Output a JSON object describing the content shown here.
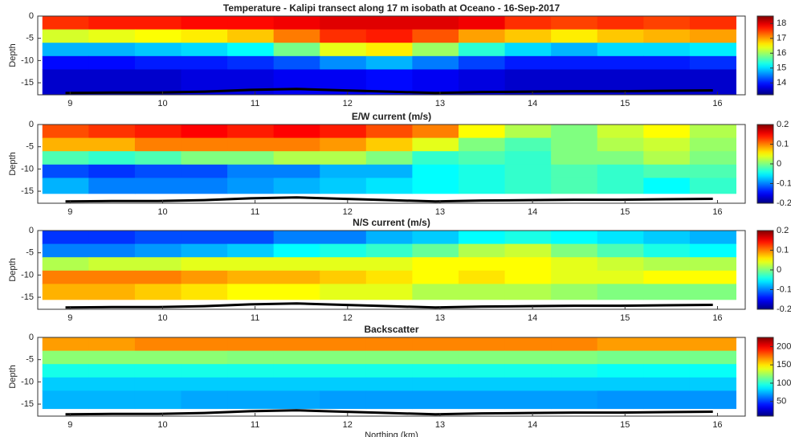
{
  "chart_data": [
    {
      "type": "heatmap",
      "title": "Temperature - Kalipi transect along 17 m isobath at Oceano - 16-Sep-2017",
      "y_label": "Depth",
      "colormap": "jet",
      "xlim": [
        8.65,
        16.3
      ],
      "xticks": [
        9,
        10,
        11,
        12,
        13,
        14,
        15,
        16
      ],
      "ylim": [
        -17.7,
        0
      ],
      "yticks": [
        0,
        -5,
        -10,
        -15
      ],
      "clim": [
        13.2,
        18.5
      ],
      "cticks": [
        14,
        15,
        16,
        17,
        18
      ],
      "x_edges": [
        8.7,
        9.2,
        9.7,
        10.2,
        10.7,
        11.2,
        11.7,
        12.2,
        12.7,
        13.2,
        13.7,
        14.2,
        14.7,
        15.2,
        15.7,
        16.2
      ],
      "y_edges": [
        0,
        -3,
        -6,
        -9,
        -12,
        -17.7
      ],
      "z": [
        [
          17.6,
          17.7,
          17.7,
          17.8,
          17.8,
          17.9,
          18,
          18,
          18,
          17.9,
          17.6,
          17.5,
          17.6,
          17.5,
          17.6
        ],
        [
          16.3,
          16.4,
          16.5,
          16.6,
          16.8,
          17.2,
          17.6,
          17.7,
          17.4,
          17,
          16.8,
          16.6,
          16.8,
          16.9,
          17
        ],
        [
          14.8,
          14.8,
          14.9,
          15,
          15.2,
          15.8,
          16.4,
          16.6,
          16,
          15.4,
          15,
          14.8,
          15,
          15,
          15.1
        ],
        [
          13.9,
          13.9,
          14,
          14,
          14.1,
          14.3,
          14.6,
          14.8,
          14.5,
          14.2,
          14,
          14,
          14,
          14,
          14.1
        ],
        [
          13.6,
          13.6,
          13.6,
          13.7,
          13.7,
          13.8,
          13.8,
          13.9,
          13.8,
          13.7,
          13.6,
          13.6,
          13.6,
          13.6,
          13.6
        ]
      ],
      "seafloor_x": [
        8.95,
        9.45,
        9.95,
        10.45,
        10.95,
        11.45,
        11.95,
        12.45,
        12.95,
        13.45,
        13.95,
        14.45,
        14.95,
        15.45,
        15.95
      ],
      "seafloor": [
        -17.3,
        -17.2,
        -17.2,
        -17,
        -16.6,
        -16.4,
        -16.7,
        -17,
        -17.3,
        -17.1,
        -17,
        -16.9,
        -16.9,
        -16.8,
        -16.7
      ]
    },
    {
      "type": "heatmap",
      "title": "E/W current (m/s)",
      "y_label": "Depth",
      "colormap": "jet",
      "xlim": [
        8.65,
        16.3
      ],
      "xticks": [
        9,
        10,
        11,
        12,
        13,
        14,
        15,
        16
      ],
      "ylim": [
        -17.7,
        0
      ],
      "yticks": [
        0,
        -5,
        -10,
        -15
      ],
      "clim": [
        -0.2,
        0.2
      ],
      "cticks": [
        0.2,
        0.1,
        0,
        -0.1,
        -0.2
      ],
      "x_edges": [
        8.7,
        9.2,
        9.7,
        10.2,
        10.7,
        11.2,
        11.7,
        12.2,
        12.7,
        13.2,
        13.7,
        14.2,
        14.7,
        15.2,
        15.7,
        16.2
      ],
      "y_edges": [
        0,
        -3,
        -6,
        -9,
        -12,
        -15.5
      ],
      "z": [
        [
          0.12,
          0.13,
          0.14,
          0.15,
          0.14,
          0.15,
          0.14,
          0.12,
          0.1,
          0.05,
          0.02,
          0,
          0.03,
          0.05,
          0.02
        ],
        [
          0.08,
          0.08,
          0.1,
          0.1,
          0.1,
          0.1,
          0.09,
          0.07,
          0.04,
          0,
          -0.02,
          0,
          0.02,
          0.03,
          0.01
        ],
        [
          -0.02,
          -0.03,
          -0.02,
          0,
          0,
          0.02,
          0.02,
          0,
          -0.03,
          -0.02,
          -0.03,
          0,
          0,
          0.02,
          0
        ],
        [
          -0.12,
          -0.13,
          -0.12,
          -0.12,
          -0.1,
          -0.1,
          -0.08,
          -0.08,
          -0.05,
          -0.04,
          -0.03,
          -0.02,
          -0.03,
          -0.02,
          -0.02
        ],
        [
          -0.08,
          -0.1,
          -0.1,
          -0.1,
          -0.09,
          -0.08,
          -0.07,
          -0.06,
          -0.05,
          -0.04,
          -0.03,
          -0.02,
          -0.03,
          -0.05,
          -0.03
        ]
      ],
      "seafloor_x": [
        8.95,
        9.45,
        9.95,
        10.45,
        10.95,
        11.45,
        11.95,
        12.45,
        12.95,
        13.45,
        13.95,
        14.45,
        14.95,
        15.45,
        15.95
      ],
      "seafloor": [
        -17.3,
        -17.2,
        -17.2,
        -17,
        -16.6,
        -16.4,
        -16.7,
        -17,
        -17.3,
        -17.1,
        -17,
        -16.9,
        -16.9,
        -16.8,
        -16.7
      ]
    },
    {
      "type": "heatmap",
      "title": "N/S current (m/s)",
      "y_label": "Depth",
      "colormap": "jet",
      "xlim": [
        8.65,
        16.3
      ],
      "xticks": [
        9,
        10,
        11,
        12,
        13,
        14,
        15,
        16
      ],
      "ylim": [
        -17.7,
        0
      ],
      "yticks": [
        0,
        -5,
        -10,
        -15
      ],
      "clim": [
        -0.2,
        0.2
      ],
      "cticks": [
        0.2,
        0.1,
        0,
        -0.1,
        -0.2
      ],
      "x_edges": [
        8.7,
        9.2,
        9.7,
        10.2,
        10.7,
        11.2,
        11.7,
        12.2,
        12.7,
        13.2,
        13.7,
        14.2,
        14.7,
        15.2,
        15.7,
        16.2
      ],
      "y_edges": [
        0,
        -3,
        -6,
        -9,
        -12,
        -15.5
      ],
      "z": [
        [
          -0.13,
          -0.13,
          -0.12,
          -0.12,
          -0.12,
          -0.1,
          -0.1,
          -0.08,
          -0.07,
          -0.05,
          -0.04,
          -0.05,
          -0.06,
          -0.07,
          -0.08
        ],
        [
          -0.1,
          -0.1,
          -0.09,
          -0.08,
          -0.07,
          -0.05,
          -0.04,
          -0.03,
          -0.01,
          0.02,
          0.03,
          0,
          -0.02,
          -0.04,
          -0.05
        ],
        [
          0.02,
          0.03,
          0.03,
          0.04,
          0.04,
          0.04,
          0.04,
          0.04,
          0.05,
          0.05,
          0.05,
          0.04,
          0.03,
          0.02,
          0.02
        ],
        [
          0.1,
          0.1,
          0.1,
          0.09,
          0.08,
          0.08,
          0.07,
          0.06,
          0.05,
          0.06,
          0.05,
          0.04,
          0.04,
          0.05,
          0.05
        ],
        [
          0.08,
          0.08,
          0.07,
          0.06,
          0.05,
          0.05,
          0.04,
          0.04,
          0.02,
          0.02,
          0.02,
          0.01,
          0,
          0,
          0
        ]
      ],
      "seafloor_x": [
        8.95,
        9.45,
        9.95,
        10.45,
        10.95,
        11.45,
        11.95,
        12.45,
        12.95,
        13.45,
        13.95,
        14.45,
        14.95,
        15.45,
        15.95
      ],
      "seafloor": [
        -17.3,
        -17.2,
        -17.2,
        -17,
        -16.6,
        -16.4,
        -16.7,
        -17,
        -17.3,
        -17.1,
        -17,
        -16.9,
        -16.9,
        -16.8,
        -16.7
      ]
    },
    {
      "type": "heatmap",
      "title": "Backscatter",
      "y_label": "Depth",
      "x_label": "Northing (km)",
      "colormap": "jet",
      "xlim": [
        8.65,
        16.3
      ],
      "xticks": [
        9,
        10,
        11,
        12,
        13,
        14,
        15,
        16
      ],
      "ylim": [
        -17.7,
        0
      ],
      "yticks": [
        0,
        -5,
        -10,
        -15
      ],
      "clim": [
        10,
        225
      ],
      "cticks": [
        200,
        150,
        100,
        50
      ],
      "x_edges": [
        8.7,
        9.2,
        9.7,
        10.2,
        10.7,
        11.2,
        11.7,
        12.2,
        12.7,
        13.2,
        13.7,
        14.2,
        14.7,
        15.2,
        15.7,
        16.2
      ],
      "y_edges": [
        0,
        -3,
        -6,
        -9,
        -12,
        -16
      ],
      "z": [
        [
          165,
          165,
          170,
          170,
          170,
          170,
          170,
          170,
          170,
          170,
          170,
          170,
          165,
          165,
          165
        ],
        [
          120,
          120,
          120,
          120,
          118,
          118,
          118,
          118,
          118,
          118,
          118,
          118,
          115,
          115,
          115
        ],
        [
          95,
          95,
          95,
          95,
          95,
          95,
          95,
          95,
          95,
          95,
          95,
          95,
          92,
          92,
          92
        ],
        [
          80,
          80,
          80,
          80,
          80,
          80,
          80,
          80,
          80,
          80,
          80,
          80,
          80,
          80,
          80
        ],
        [
          75,
          75,
          75,
          72,
          72,
          72,
          70,
          70,
          70,
          70,
          70,
          70,
          68,
          68,
          68
        ]
      ],
      "seafloor_x": [
        8.95,
        9.45,
        9.95,
        10.45,
        10.95,
        11.45,
        11.95,
        12.45,
        12.95,
        13.45,
        13.95,
        14.45,
        14.95,
        15.45,
        15.95
      ],
      "seafloor": [
        -17.3,
        -17.2,
        -17.2,
        -17,
        -16.6,
        -16.4,
        -16.7,
        -17,
        -17.3,
        -17.1,
        -17,
        -16.9,
        -16.9,
        -16.8,
        -16.7
      ]
    }
  ]
}
